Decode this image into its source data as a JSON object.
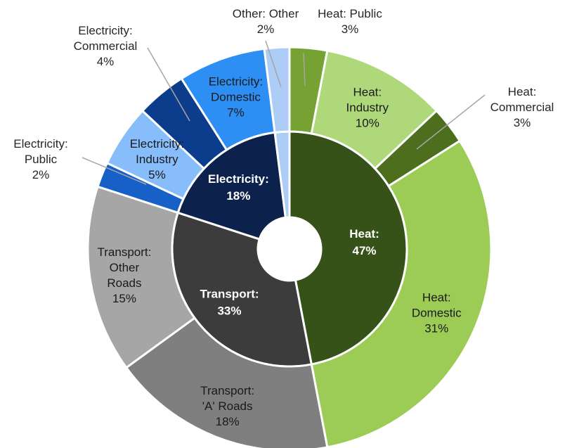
{
  "chart_data": {
    "type": "pie",
    "inner_ring": [
      {
        "name": "Heat",
        "value": 47,
        "label": [
          "Heat:",
          "47%"
        ],
        "color": "#375219"
      },
      {
        "name": "Transport",
        "value": 33,
        "label": [
          "Transport:",
          "33%"
        ],
        "color": "#3c3c3c"
      },
      {
        "name": "Electricity",
        "value": 18,
        "label": [
          "Electricity:",
          "18%"
        ],
        "color": "#0c224c"
      },
      {
        "name": "Other",
        "value": 2,
        "label": [],
        "color": "#aecdf6"
      }
    ],
    "outer_ring": [
      {
        "name": "Heat: Public",
        "value": 3,
        "label": [
          "Heat: Public",
          "3%"
        ],
        "color": "#75a233",
        "label_outside": true
      },
      {
        "name": "Heat: Industry",
        "value": 10,
        "label": [
          "Heat:",
          "Industry",
          "10%"
        ],
        "color": "#aed87a"
      },
      {
        "name": "Heat: Commercial",
        "value": 3,
        "label": [
          "Heat:",
          "Commercial",
          "3%"
        ],
        "color": "#4c6e1d",
        "label_outside": true
      },
      {
        "name": "Heat: Domestic",
        "value": 31,
        "label": [
          "Heat:",
          "Domestic",
          "31%"
        ],
        "color": "#9ccc55"
      },
      {
        "name": "Transport: 'A' Roads",
        "value": 18,
        "label": [
          "Transport:",
          "'A' Roads",
          "18%"
        ],
        "color": "#7f7f7f"
      },
      {
        "name": "Transport: Other Roads",
        "value": 15,
        "label": [
          "Transport:",
          "Other",
          "Roads",
          "15%"
        ],
        "color": "#a6a6a6"
      },
      {
        "name": "Electricity: Public",
        "value": 2,
        "label": [
          "Electricity:",
          "Public",
          "2%"
        ],
        "color": "#1660c8",
        "label_outside": true
      },
      {
        "name": "Electricity: Industry",
        "value": 5,
        "label": [
          "Electricity:",
          "Industry",
          "5%"
        ],
        "color": "#86bdfa"
      },
      {
        "name": "Electricity: Commercial",
        "value": 4,
        "label": [
          "Electricity:",
          "Commercial",
          "4%"
        ],
        "color": "#0c3d8c",
        "label_outside": true
      },
      {
        "name": "Electricity: Domestic",
        "value": 7,
        "label": [
          "Electricity:",
          "Domestic",
          "7%"
        ],
        "color": "#2d8ff3"
      },
      {
        "name": "Other: Other",
        "value": 2,
        "label": [
          "Other: Other",
          "2%"
        ],
        "color": "#aecdf6",
        "label_outside": true
      }
    ]
  }
}
